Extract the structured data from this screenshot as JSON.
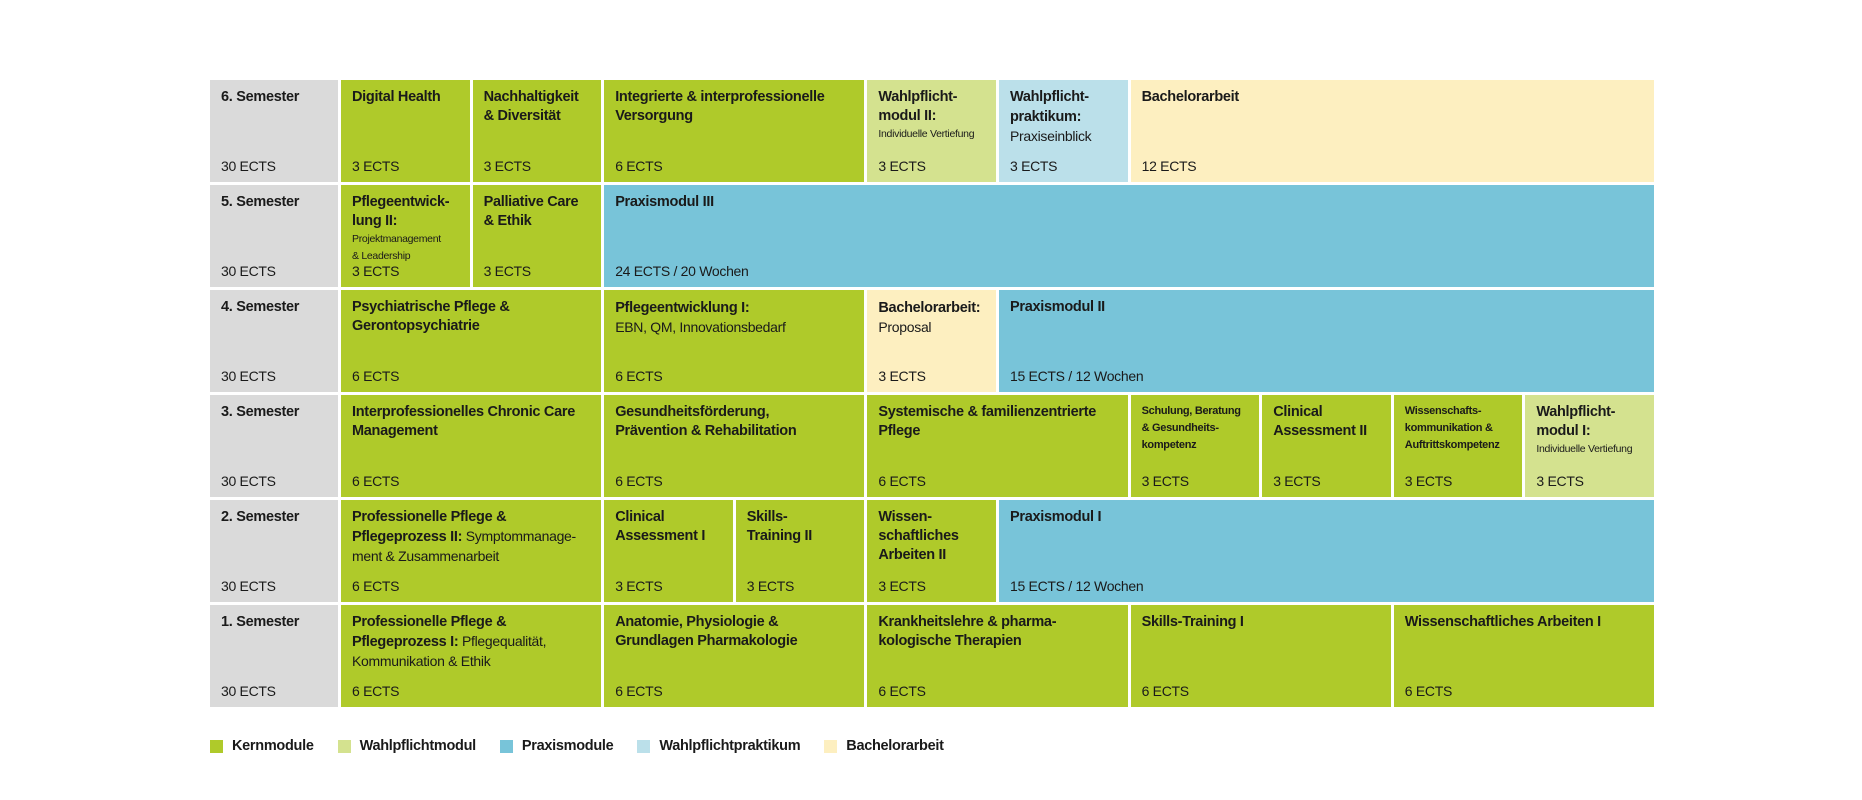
{
  "colors": {
    "semester": "#dadada",
    "kern": "#afca2a",
    "wahlpflicht": "#d4e28f",
    "praxis": "#78c4d9",
    "wahlpraktikum": "#bbe0ea",
    "bachelor": "#fdefc0"
  },
  "rows": [
    {
      "semester": "6. Semester",
      "ects": "30 ECTS",
      "modules": [
        {
          "title": "Digital Health",
          "ects": "3 ECTS",
          "span": 1,
          "type": "kern"
        },
        {
          "title": "Nachhaltigkeit\n& Diversität",
          "ects": "3 ECTS",
          "span": 1,
          "type": "kern"
        },
        {
          "title": "Integrierte & interprofessionelle\nVersorgung",
          "ects": "6 ECTS",
          "span": 2,
          "type": "kern"
        },
        {
          "title": "Wahlpflicht-\nmodul II:",
          "sub": "Individuelle Vertiefung",
          "sub_small": true,
          "ects": "3 ECTS",
          "span": 1,
          "type": "wahlpflicht"
        },
        {
          "title": "Wahlpflicht-\npraktikum:",
          "sub": "\nPraxiseinblick",
          "ects": "3 ECTS",
          "span": 1,
          "type": "wahlpraktikum"
        },
        {
          "title": "Bachelorarbeit",
          "ects": "12 ECTS",
          "span": 4,
          "type": "bachelor"
        }
      ]
    },
    {
      "semester": "5. Semester",
      "ects": "30 ECTS",
      "modules": [
        {
          "title": "Pflegeentwick-\nlung II:",
          "sub": "Projektmanagement\n& Leadership",
          "sub_small": true,
          "ects": "3 ECTS",
          "span": 1,
          "type": "kern"
        },
        {
          "title": "Palliative Care\n& Ethik",
          "ects": "3 ECTS",
          "span": 1,
          "type": "kern"
        },
        {
          "title": "Praxismodul  III",
          "ects": "24 ECTS / 20 Wochen",
          "span": 8,
          "type": "praxis"
        }
      ]
    },
    {
      "semester": "4. Semester",
      "ects": "30 ECTS",
      "modules": [
        {
          "title": "Psychiatrische Pflege &\nGerontopsychiatrie",
          "ects": "6 ECTS",
          "span": 2,
          "type": "kern"
        },
        {
          "title": "Pflegeentwicklung I:",
          "sub": "\nEBN, QM, Innovationsbedarf",
          "ects": "6 ECTS",
          "span": 2,
          "type": "kern"
        },
        {
          "title": "Bachelorarbeit:",
          "sub": "\nProposal",
          "ects": "3 ECTS",
          "span": 1,
          "type": "bachelor"
        },
        {
          "title": "Praxismodul  II",
          "ects": "15 ECTS / 12 Wochen",
          "span": 5,
          "type": "praxis"
        }
      ]
    },
    {
      "semester": "3. Semester",
      "ects": "30 ECTS",
      "modules": [
        {
          "title": "Interprofessionelles Chronic Care\nManagement",
          "ects": "6 ECTS",
          "span": 2,
          "type": "kern"
        },
        {
          "title": "Gesundheitsförderung,\nPrävention & Rehabilitation",
          "ects": "6 ECTS",
          "span": 2,
          "type": "kern"
        },
        {
          "title": "Systemische & familienzentrierte\nPflege",
          "ects": "6 ECTS",
          "span": 2,
          "type": "kern"
        },
        {
          "title": "Schulung, Beratung\n& Gesundheits-\nkompetenz",
          "title_small": true,
          "ects": "3 ECTS",
          "span": 1,
          "type": "kern"
        },
        {
          "title": "Clinical\nAssessment II",
          "ects": "3 ECTS",
          "span": 1,
          "type": "kern"
        },
        {
          "title": "Wissenschafts-\nkommunikation &\nAuftrittskompetenz",
          "title_small": true,
          "ects": "3 ECTS",
          "span": 1,
          "type": "kern"
        },
        {
          "title": "Wahlpflicht-\nmodul I:",
          "sub": "Individuelle Vertiefung",
          "sub_small": true,
          "ects": "3 ECTS",
          "span": 1,
          "type": "wahlpflicht"
        }
      ]
    },
    {
      "semester": "2. Semester",
      "ects": "30 ECTS",
      "modules": [
        {
          "title": "Professionelle Pflege &\nPflegeprozess II:",
          "sub": " Symptommanage-\nment & Zusammenarbeit",
          "ects": "6 ECTS",
          "span": 2,
          "type": "kern"
        },
        {
          "title": "Clinical\nAssessment I",
          "ects": "3 ECTS",
          "span": 1,
          "type": "kern"
        },
        {
          "title": "Skills-\nTraining II",
          "ects": "3 ECTS",
          "span": 1,
          "type": "kern"
        },
        {
          "title": "Wissen-\nschaftliches\nArbeiten II",
          "ects": "3 ECTS",
          "span": 1,
          "type": "kern"
        },
        {
          "title": "Praxismodul I",
          "ects": "15 ECTS / 12 Wochen",
          "span": 5,
          "type": "praxis"
        }
      ]
    },
    {
      "semester": "1. Semester",
      "ects": "30 ECTS",
      "modules": [
        {
          "title": "Professionelle Pflege &\nPflegeprozess I:",
          "sub": " Pflegequalität,\nKommunikation & Ethik",
          "ects": "6 ECTS",
          "span": 2,
          "type": "kern"
        },
        {
          "title": "Anatomie, Physiologie &\nGrundlagen Pharmakologie",
          "ects": "6 ECTS",
          "span": 2,
          "type": "kern"
        },
        {
          "title": "Krankheitslehre & pharma-\nkologische Therapien",
          "ects": "6 ECTS",
          "span": 2,
          "type": "kern"
        },
        {
          "title": "Skills-Training I",
          "ects": "6 ECTS",
          "span": 2,
          "type": "kern"
        },
        {
          "title": "Wissenschaftliches Arbeiten I",
          "ects": "6 ECTS",
          "span": 2,
          "type": "kern"
        }
      ]
    }
  ],
  "legend": [
    {
      "label": "Kernmodule",
      "type": "kern"
    },
    {
      "label": "Wahlpflichtmodul",
      "type": "wahlpflicht"
    },
    {
      "label": "Praxismodule",
      "type": "praxis"
    },
    {
      "label": "Wahlpflichtpraktikum",
      "type": "wahlpraktikum"
    },
    {
      "label": "Bachelorarbeit",
      "type": "bachelor"
    }
  ]
}
